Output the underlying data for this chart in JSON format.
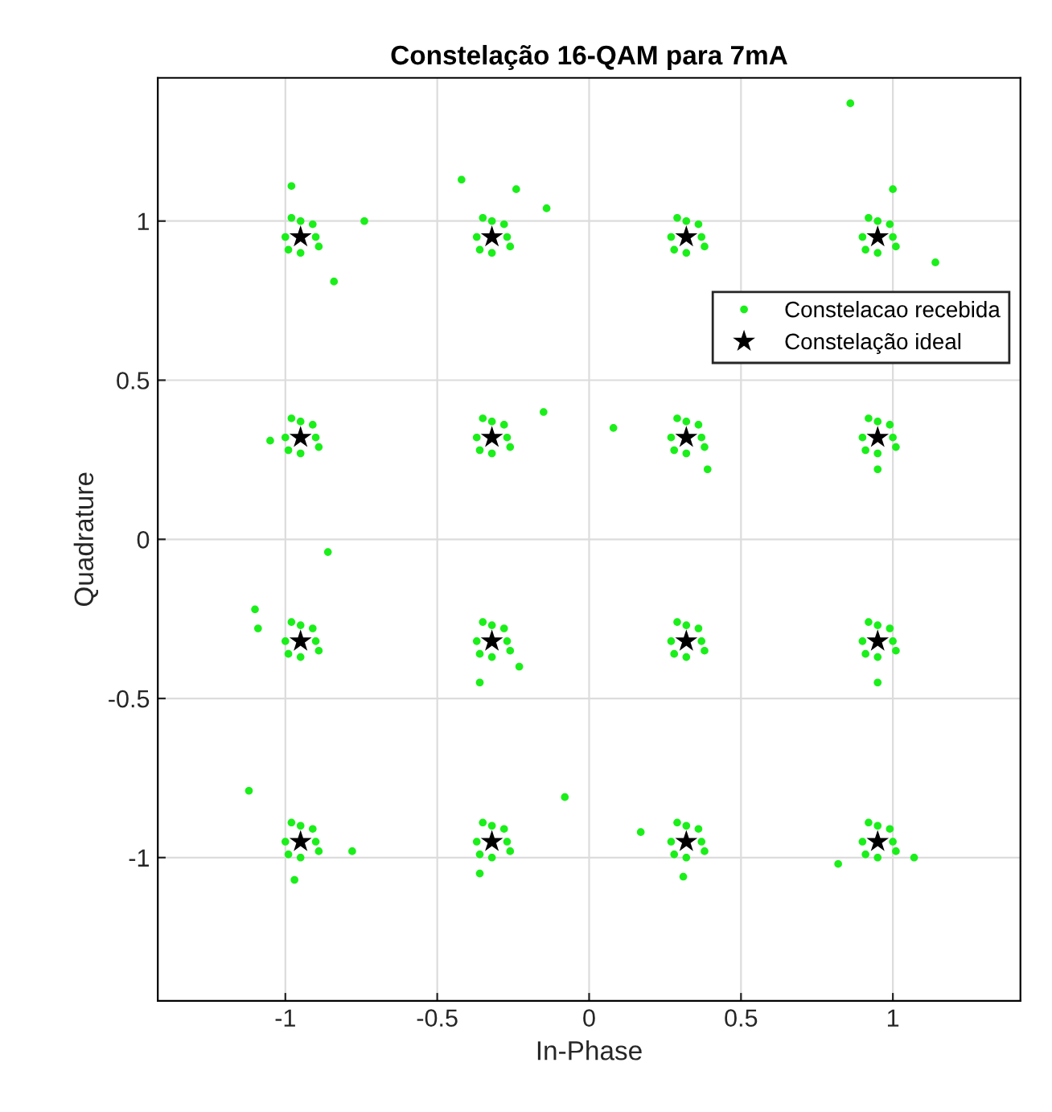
{
  "chart_data": {
    "type": "scatter",
    "title": "Constelação 16-QAM para 7mA",
    "xlabel": "In-Phase",
    "ylabel": "Quadrature",
    "xlim": [
      -1.42,
      1.42
    ],
    "ylim": [
      -1.45,
      1.45
    ],
    "xticks": [
      -1,
      -0.5,
      0,
      0.5,
      1
    ],
    "yticks": [
      -1,
      -0.5,
      0,
      0.5,
      1
    ],
    "grid": true,
    "legend": "top right",
    "series": [
      {
        "name": "Constelacao recebida",
        "color": "#1aef1a",
        "marker": "circle",
        "x": [
          -0.9,
          -1.0,
          -0.95,
          -0.95,
          -0.91,
          -0.99,
          -0.89,
          -0.98,
          -0.27,
          -0.37,
          -0.32,
          -0.32,
          -0.28,
          -0.36,
          -0.26,
          -0.35,
          0.37,
          0.27,
          0.32,
          0.32,
          0.36,
          0.28,
          0.38,
          0.29,
          1.0,
          0.9,
          0.95,
          0.95,
          0.99,
          0.91,
          1.01,
          0.92,
          -0.9,
          -1.0,
          -0.95,
          -0.95,
          -0.91,
          -0.99,
          -0.89,
          -0.98,
          -0.27,
          -0.37,
          -0.32,
          -0.32,
          -0.28,
          -0.36,
          -0.26,
          -0.35,
          0.37,
          0.27,
          0.32,
          0.32,
          0.36,
          0.28,
          0.38,
          0.29,
          1.0,
          0.9,
          0.95,
          0.95,
          0.99,
          0.91,
          1.01,
          0.92,
          -0.9,
          -1.0,
          -0.95,
          -0.95,
          -0.91,
          -0.99,
          -0.89,
          -0.98,
          -0.27,
          -0.37,
          -0.32,
          -0.32,
          -0.28,
          -0.36,
          -0.26,
          -0.35,
          0.37,
          0.27,
          0.32,
          0.32,
          0.36,
          0.28,
          0.38,
          0.29,
          1.0,
          0.9,
          0.95,
          0.95,
          0.99,
          0.91,
          1.01,
          0.92,
          -0.9,
          -1.0,
          -0.95,
          -0.95,
          -0.91,
          -0.99,
          -0.89,
          -0.98,
          -0.27,
          -0.37,
          -0.32,
          -0.32,
          -0.28,
          -0.36,
          -0.26,
          -0.35,
          0.37,
          0.27,
          0.32,
          0.32,
          0.36,
          0.28,
          0.38,
          0.29,
          1.0,
          0.9,
          0.95,
          0.95,
          0.99,
          0.91,
          1.01,
          0.92,
          0.86,
          -0.98,
          -0.42,
          -0.24,
          -0.14,
          -0.74,
          -0.84,
          1.14,
          1.0,
          0.08,
          -0.15,
          -1.05,
          0.39,
          0.95,
          -0.86,
          -1.1,
          -1.09,
          -0.36,
          -0.23,
          0.95,
          -1.12,
          -0.08,
          -0.97,
          -0.36,
          0.31,
          1.07,
          0.82,
          -0.78,
          0.17
        ],
        "values": [
          0.95,
          0.95,
          1.0,
          0.9,
          0.99,
          0.91,
          0.92,
          1.01,
          0.95,
          0.95,
          1.0,
          0.9,
          0.99,
          0.91,
          0.92,
          1.01,
          0.95,
          0.95,
          1.0,
          0.9,
          0.99,
          0.91,
          0.92,
          1.01,
          0.95,
          0.95,
          1.0,
          0.9,
          0.99,
          0.91,
          0.92,
          1.01,
          0.32,
          0.32,
          0.37,
          0.27,
          0.36,
          0.28,
          0.29,
          0.38,
          0.32,
          0.32,
          0.37,
          0.27,
          0.36,
          0.28,
          0.29,
          0.38,
          0.32,
          0.32,
          0.37,
          0.27,
          0.36,
          0.28,
          0.29,
          0.38,
          0.32,
          0.32,
          0.37,
          0.27,
          0.36,
          0.28,
          0.29,
          0.38,
          -0.32,
          -0.32,
          -0.27,
          -0.37,
          -0.28,
          -0.36,
          -0.35,
          -0.26,
          -0.32,
          -0.32,
          -0.27,
          -0.37,
          -0.28,
          -0.36,
          -0.35,
          -0.26,
          -0.32,
          -0.32,
          -0.27,
          -0.37,
          -0.28,
          -0.36,
          -0.35,
          -0.26,
          -0.32,
          -0.32,
          -0.27,
          -0.37,
          -0.28,
          -0.36,
          -0.35,
          -0.26,
          -0.95,
          -0.95,
          -0.9,
          -1.0,
          -0.91,
          -0.99,
          -0.98,
          -0.89,
          -0.95,
          -0.95,
          -0.9,
          -1.0,
          -0.91,
          -0.99,
          -0.98,
          -0.89,
          -0.95,
          -0.95,
          -0.9,
          -1.0,
          -0.91,
          -0.99,
          -0.98,
          -0.89,
          -0.95,
          -0.95,
          -0.9,
          -1.0,
          -0.91,
          -0.99,
          -0.98,
          -0.89,
          1.37,
          1.11,
          1.13,
          1.1,
          1.04,
          1.0,
          0.81,
          0.87,
          1.1,
          0.35,
          0.4,
          0.31,
          0.22,
          0.22,
          -0.04,
          -0.22,
          -0.28,
          -0.45,
          -0.4,
          -0.45,
          -0.79,
          -0.81,
          -1.07,
          -1.05,
          -1.06,
          -1.0,
          -1.02,
          -0.98,
          -0.92
        ]
      },
      {
        "name": "Constelação ideal",
        "color": "#000000",
        "marker": "star",
        "x": [
          -0.95,
          -0.32,
          0.32,
          0.95,
          -0.95,
          -0.32,
          0.32,
          0.95,
          -0.95,
          -0.32,
          0.32,
          0.95,
          -0.95,
          -0.32,
          0.32,
          0.95
        ],
        "values": [
          0.95,
          0.95,
          0.95,
          0.95,
          0.32,
          0.32,
          0.32,
          0.32,
          -0.32,
          -0.32,
          -0.32,
          -0.32,
          -0.95,
          -0.95,
          -0.95,
          -0.95
        ]
      }
    ]
  }
}
